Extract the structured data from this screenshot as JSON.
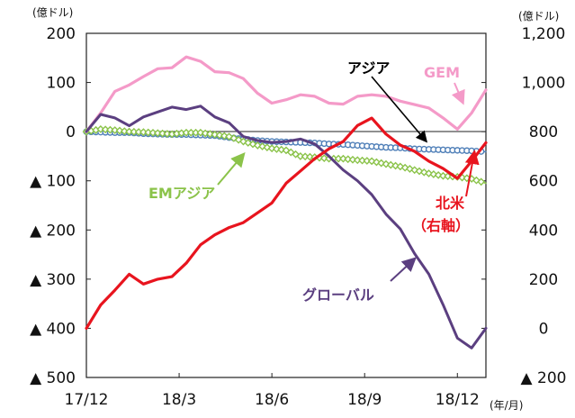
{
  "chart_data": {
    "type": "line",
    "y_unit_left": "(億ドル)",
    "y_unit_right": "(億ドル)",
    "x_unit": "(年/月)",
    "x_ticks": [
      {
        "label": "17/12",
        "x": 0
      },
      {
        "label": "18/3",
        "x": 13
      },
      {
        "label": "18/6",
        "x": 26
      },
      {
        "label": "18/9",
        "x": 39
      },
      {
        "label": "18/12",
        "x": 52
      }
    ],
    "x_range": [
      0,
      56
    ],
    "y_left": {
      "range": [
        -500,
        200
      ],
      "ticks": [
        {
          "label": "200",
          "value": 200
        },
        {
          "label": "100",
          "value": 100
        },
        {
          "label": "0",
          "value": 0
        },
        {
          "label": "▲ 100",
          "value": -100
        },
        {
          "label": "▲ 200",
          "value": -200
        },
        {
          "label": "▲ 300",
          "value": -300
        },
        {
          "label": "▲ 400",
          "value": -400
        },
        {
          "label": "▲ 500",
          "value": -500
        }
      ]
    },
    "y_right": {
      "range": [
        -200,
        1200
      ],
      "ticks": [
        {
          "label": "1,200",
          "value": 1200
        },
        {
          "label": "1,000",
          "value": 1000
        },
        {
          "label": "800",
          "value": 800
        },
        {
          "label": "600",
          "value": 600
        },
        {
          "label": "400",
          "value": 400
        },
        {
          "label": "200",
          "value": 200
        },
        {
          "label": "0",
          "value": 0
        },
        {
          "label": "▲ 200",
          "value": -200
        }
      ]
    },
    "series": [
      {
        "name": "GEM",
        "axis": "left",
        "color": "#f49ac8",
        "style": "line",
        "x": [
          0,
          2,
          4,
          6,
          8,
          10,
          12,
          14,
          16,
          18,
          20,
          22,
          24,
          26,
          28,
          30,
          32,
          34,
          36,
          38,
          40,
          42,
          44,
          46,
          48,
          50,
          52,
          54,
          56
        ],
        "values": [
          0,
          38,
          82,
          95,
          112,
          128,
          130,
          152,
          143,
          122,
          120,
          108,
          78,
          58,
          65,
          75,
          72,
          58,
          56,
          72,
          75,
          72,
          62,
          55,
          48,
          28,
          5,
          38,
          85
        ]
      },
      {
        "name": "北米（右軸）",
        "axis": "right",
        "color": "#e8141e",
        "style": "line",
        "x": [
          0,
          2,
          4,
          6,
          8,
          10,
          12,
          14,
          16,
          18,
          20,
          22,
          24,
          26,
          28,
          30,
          32,
          34,
          36,
          38,
          40,
          42,
          44,
          46,
          48,
          50,
          52,
          54,
          56
        ],
        "values": [
          0,
          95,
          155,
          220,
          180,
          200,
          210,
          265,
          340,
          380,
          410,
          430,
          470,
          510,
          590,
          640,
          690,
          730,
          760,
          825,
          855,
          790,
          745,
          720,
          680,
          650,
          610,
          680,
          755
        ]
      },
      {
        "name": "アジア",
        "axis": "left",
        "color": "#4f7fb8",
        "style": "circle-markers",
        "x": [
          0,
          2,
          4,
          6,
          8,
          10,
          12,
          14,
          16,
          18,
          20,
          22,
          24,
          26,
          28,
          30,
          32,
          34,
          36,
          38,
          40,
          42,
          44,
          46,
          48,
          50,
          52,
          54,
          56
        ],
        "values": [
          0,
          -1,
          -2,
          -2,
          -4,
          -5,
          -6,
          -6,
          -7,
          -8,
          -12,
          -15,
          -18,
          -20,
          -21,
          -22,
          -23,
          -25,
          -26,
          -28,
          -30,
          -32,
          -33,
          -35,
          -36,
          -37,
          -38,
          -39,
          -41
        ]
      },
      {
        "name": "EMアジア",
        "axis": "left",
        "color": "#8bc34a",
        "style": "diamond-markers",
        "x": [
          0,
          2,
          4,
          6,
          8,
          10,
          12,
          14,
          16,
          18,
          20,
          22,
          24,
          26,
          28,
          30,
          32,
          34,
          36,
          38,
          40,
          42,
          44,
          46,
          48,
          50,
          52,
          54,
          56
        ],
        "values": [
          0,
          5,
          3,
          0,
          -1,
          -3,
          -5,
          -2,
          -2,
          -6,
          -10,
          -20,
          -28,
          -34,
          -38,
          -50,
          -52,
          -55,
          -55,
          -58,
          -60,
          -66,
          -71,
          -78,
          -85,
          -90,
          -92,
          -96,
          -105
        ]
      },
      {
        "name": "グローバル",
        "axis": "left",
        "color": "#5b3f80",
        "style": "line",
        "x": [
          0,
          2,
          4,
          6,
          8,
          10,
          12,
          14,
          16,
          18,
          20,
          22,
          24,
          26,
          28,
          30,
          32,
          34,
          36,
          38,
          40,
          42,
          44,
          46,
          48,
          50,
          52,
          54,
          56
        ],
        "values": [
          0,
          35,
          28,
          12,
          30,
          40,
          50,
          45,
          52,
          30,
          18,
          -10,
          -18,
          -22,
          -20,
          -15,
          -25,
          -50,
          -78,
          -100,
          -128,
          -168,
          -198,
          -248,
          -290,
          -352,
          -420,
          -440,
          -400
        ]
      }
    ],
    "annotations": [
      {
        "text": "GEM",
        "series": "GEM"
      },
      {
        "text": "アジア",
        "series": "アジア"
      },
      {
        "text": "EMアジア",
        "series": "EMアジア"
      },
      {
        "text": "北米",
        "series": "北米（右軸）"
      },
      {
        "text": "（右軸）",
        "series": "北米（右軸）"
      },
      {
        "text": "グローバル",
        "series": "グローバル"
      }
    ],
    "grid": false,
    "legend": "none"
  }
}
